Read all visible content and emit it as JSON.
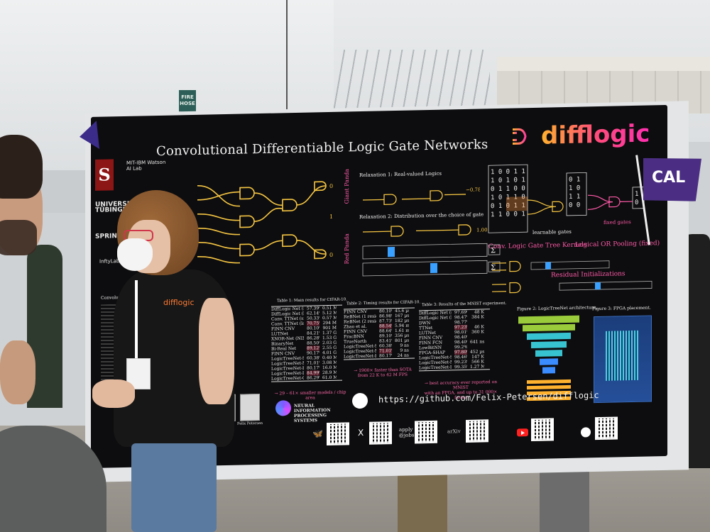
{
  "scene": {
    "fire_sign": "FIRE HOSE"
  },
  "poster": {
    "title": "Convolutional Differentiable Logic Gate Networks",
    "brand": "difflogic",
    "affiliations": {
      "ibm": "MIT-IBM Watson AI Lab",
      "tuebingen": "UNIVERSITÄT TÜBINGEN",
      "springer": "SPRIN",
      "infty": "InftyLabs"
    },
    "relaxation1_title": "Relaxation 1: Real-valued Logics",
    "relaxation2_title": "Relaxation 2: Distribution over the choice of gate",
    "relax_example": "−0.78",
    "relax_example2": "1.00",
    "gate_labels": {
      "giant": "Giant Panda",
      "red": "Red Panda"
    },
    "diagram_captions": {
      "learnable": "learnable gates",
      "fixed": "fixed gates",
      "kernels": "Conv. Logic Gate Tree Kernels",
      "pooling": "Logical OR Pooling (fixed)",
      "residual": "Residual Initializations"
    },
    "section_intro": "Convolutional Differentiable",
    "table1_title": "Table 1: Main results for CIFAR-10.",
    "table1_rows": [
      {
        "m": "DiffLogic Net (medium)",
        "a": "57.39%",
        "g": "0.51 M"
      },
      {
        "m": "DiffLogic Net (largest)",
        "a": "62.14%",
        "g": "5.12 M"
      },
      {
        "m": "Conv. TTNet (small)",
        "a": "50.33%",
        "g": "0.57 M"
      },
      {
        "m": "Conv. TTNet (large)",
        "a": "70.75%",
        "g": "294 M"
      },
      {
        "m": "FINN CNV",
        "a": "80.10%",
        "g": "901 M"
      },
      {
        "m": "LUTNet",
        "a": "84.21%",
        "g": "1.37 G"
      },
      {
        "m": "XNOR-Net (NIN)",
        "a": "86.28%",
        "g": "1.53 G"
      },
      {
        "m": "BinaryNet",
        "a": "88.50%",
        "g": "2.03 G"
      },
      {
        "m": "Bi-Real Net",
        "a": "89.12%",
        "g": "2.55 G"
      },
      {
        "m": "FINN CNV",
        "a": "90.17%",
        "g": "4.01 G"
      },
      {
        "m": "LogicTreeNet-S",
        "a": "60.38%",
        "g": "0.40 M"
      },
      {
        "m": "LogicTreeNet-M",
        "a": "71.01%",
        "g": "3.08 M"
      },
      {
        "m": "LogicTreeNet-B",
        "a": "80.17%",
        "g": "16.0 M"
      },
      {
        "m": "LogicTreeNet-L",
        "a": "84.99%",
        "g": "28.9 M"
      },
      {
        "m": "LogicTreeNet-G",
        "a": "86.29%",
        "g": "61.0 M"
      }
    ],
    "table1_note": "→ 29 – 61× smaller models / chip area",
    "table2_title": "Table 2: Timing results for CIFAR-10.",
    "table2_rows": [
      {
        "m": "FINN CNV",
        "a": "80.10%",
        "g": "45.6 µs"
      },
      {
        "m": "ReBNet (1 residual)",
        "a": "86.98%",
        "g": "167 µs"
      },
      {
        "m": "ReBNet (2 residuals)",
        "a": "87.73%",
        "g": "182 µs"
      },
      {
        "m": "Zhao et al.",
        "a": "88.54%",
        "g": "5.94 ms"
      },
      {
        "m": "FINN CNV",
        "a": "88.64%",
        "g": "1.61 ms"
      },
      {
        "m": "FracBNN",
        "a": "89.10%",
        "g": "356 µs"
      },
      {
        "m": "TrueNorth",
        "a": "83.41%",
        "g": "801 µs"
      },
      {
        "m": "LogicTreeNet-S",
        "a": "60.38%",
        "g": "9 ns"
      },
      {
        "m": "LogicTreeNet-M",
        "a": "71.01%",
        "g": "9 ns"
      },
      {
        "m": "LogicTreeNet-B",
        "a": "80.17%",
        "g": "24 ns"
      }
    ],
    "table2_note": "→ 1900× faster than SOTA\nfrom 22 K to 42 M FPS",
    "table3_title": "Table 3: Results of the MNIST experiment.",
    "table3_rows": [
      {
        "m": "DiffLogic Net (s)",
        "a": "97.69%",
        "g": "48 K"
      },
      {
        "m": "DiffLogic Net (l)",
        "a": "98.47%",
        "g": "384 K"
      },
      {
        "m": "DWN",
        "a": "98.77%",
        "g": ""
      },
      {
        "m": "TTNet",
        "a": "97.23%",
        "g": "46 K"
      },
      {
        "m": "LUTNet",
        "a": "98.01%",
        "g": "360 K"
      },
      {
        "m": "FINN CNV",
        "a": "98.40%",
        "g": ""
      },
      {
        "m": "FINN FCN",
        "a": "98.40%",
        "g": "641 ns"
      },
      {
        "m": "LowBitNN",
        "a": "99.2%",
        "g": ""
      },
      {
        "m": "FPGA-SHAP",
        "a": "97.80%",
        "g": "452 µs"
      },
      {
        "m": "LogicTreeNet-S",
        "a": "98.46%",
        "g": "147 K"
      },
      {
        "m": "LogicTreeNet-M",
        "a": "99.23%",
        "g": "566 K"
      },
      {
        "m": "LogicTreeNet-L",
        "a": "99.35%",
        "g": "1.27 M"
      }
    ],
    "table3_note": "→ best accuracy ever reported on MNIST\nwith an FPGA, and up to 31 000× faster",
    "fig2_title": "Figure 2: LogicTreeNet architecture.",
    "fig3_title": "Figure 3: FPGA placement.",
    "url": "https://github.com/Felix-Petersen/difflogic",
    "neurips": "NEURAL INFORMATION PROCESSING SYSTEMS",
    "qr_labels": {
      "apply": "apply\n@jobs",
      "arxiv": "arXiv"
    },
    "authors": {
      "a2": "Felix Petersen"
    }
  },
  "flag_right": "CAL",
  "presenter_shirt": "difflogic",
  "colors": {
    "poster_bg": "#0d0d0f",
    "accent_pink": "#ff5aa8",
    "accent_orange": "#ffb22e",
    "gate_yellow": "#f5c542",
    "stanford_red": "#8c1515"
  }
}
